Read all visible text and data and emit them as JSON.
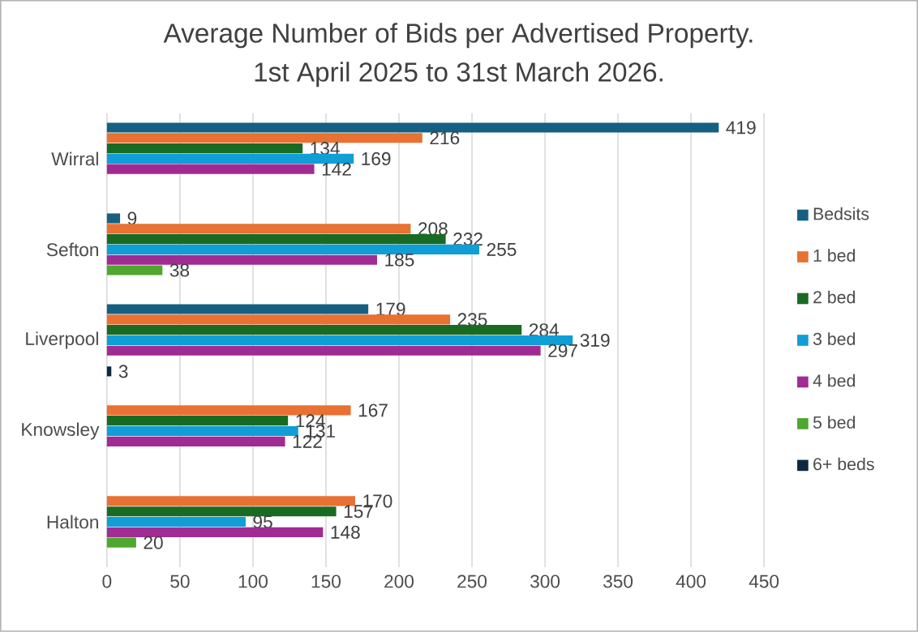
{
  "chart_data": {
    "type": "bar",
    "orientation": "horizontal",
    "title": "Average Number of Bids per Advertised Property.",
    "subtitle": "1st April 2025 to 31st March 2026.",
    "categories": [
      "Wirral",
      "Sefton",
      "Liverpool",
      "Knowsley",
      "Halton"
    ],
    "series": [
      {
        "name": "Bedsits",
        "color": "#156082",
        "values": [
          419,
          9,
          179,
          null,
          null
        ]
      },
      {
        "name": "1 bed",
        "color": "#e97132",
        "values": [
          216,
          208,
          235,
          167,
          170
        ]
      },
      {
        "name": "2 bed",
        "color": "#196b24",
        "values": [
          134,
          232,
          284,
          124,
          157
        ]
      },
      {
        "name": "3 bed",
        "color": "#0f9ed5",
        "values": [
          169,
          255,
          319,
          131,
          95
        ]
      },
      {
        "name": "4 bed",
        "color": "#a02b93",
        "values": [
          142,
          185,
          297,
          122,
          148
        ]
      },
      {
        "name": "5 bed",
        "color": "#4ea72e",
        "values": [
          null,
          38,
          null,
          null,
          20
        ]
      },
      {
        "name": "6+ beds",
        "color": "#0e2841",
        "values": [
          null,
          null,
          3,
          null,
          null
        ]
      }
    ],
    "xlim": [
      0,
      450
    ],
    "xticks": [
      0,
      50,
      100,
      150,
      200,
      250,
      300,
      350,
      400,
      450
    ],
    "grid": "x",
    "legend": "right",
    "data_labels": true
  }
}
